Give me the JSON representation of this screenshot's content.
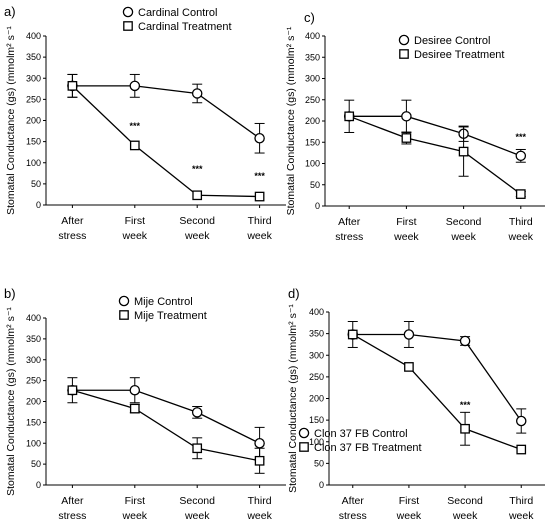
{
  "chart_data": [
    {
      "panel": "a)",
      "type": "line",
      "ylabel": "Stomatal Conductance (gs) (mmolm² s⁻¹",
      "ylim": [
        0,
        400
      ],
      "yticks": [
        0,
        50,
        100,
        150,
        200,
        250,
        300,
        350,
        400
      ],
      "categories": [
        [
          "After",
          "stress"
        ],
        [
          "First",
          "week"
        ],
        [
          "Second",
          "week"
        ],
        [
          "Third",
          "week"
        ]
      ],
      "legend_position": "top-center",
      "series": [
        {
          "name": "Cardinal Control",
          "marker": "circle",
          "values": [
            282,
            282,
            264,
            158
          ],
          "errors": [
            27,
            27,
            22,
            35
          ]
        },
        {
          "name": "Cardinal Treatment",
          "marker": "square",
          "values": [
            282,
            141,
            23,
            20
          ],
          "errors": [
            27,
            0,
            0,
            0
          ]
        }
      ],
      "annotations": [
        {
          "text": "***",
          "x": 1,
          "y": 180
        },
        {
          "text": "***",
          "x": 2,
          "y": 78
        },
        {
          "text": "***",
          "x": 3,
          "y": 62
        }
      ]
    },
    {
      "panel": "c)",
      "type": "line",
      "ylabel": "Stomatal Conductance (gs) (mmolm² s⁻¹",
      "ylim": [
        0,
        400
      ],
      "yticks": [
        0,
        50,
        100,
        150,
        200,
        250,
        300,
        350,
        400
      ],
      "categories": [
        [
          "After",
          "stress"
        ],
        [
          "First",
          "week"
        ],
        [
          "Second",
          "week"
        ],
        [
          "Third",
          "week"
        ]
      ],
      "legend_position": "top-center",
      "series": [
        {
          "name": "Desiree Control",
          "marker": "circle",
          "values": [
            211,
            211,
            170,
            118
          ],
          "errors": [
            38,
            38,
            18,
            15
          ]
        },
        {
          "name": "Desiree Treatment",
          "marker": "square",
          "values": [
            211,
            160,
            128,
            28
          ],
          "errors": [
            0,
            14,
            58,
            6
          ]
        }
      ],
      "annotations": [
        {
          "text": "***",
          "x": 3,
          "y": 155
        }
      ]
    },
    {
      "panel": "b)",
      "type": "line",
      "ylabel": "Stomatal Conductance (gs) (mmolm² s⁻¹",
      "ylim": [
        0,
        400
      ],
      "yticks": [
        0,
        50,
        100,
        150,
        200,
        250,
        300,
        350,
        400
      ],
      "categories": [
        [
          "After",
          "stress"
        ],
        [
          "First",
          "week"
        ],
        [
          "Second",
          "week"
        ],
        [
          "Third",
          "week"
        ]
      ],
      "legend_position": "top-center",
      "series": [
        {
          "name": "Mije Control",
          "marker": "circle",
          "values": [
            227,
            227,
            174,
            100
          ],
          "errors": [
            30,
            30,
            14,
            38
          ]
        },
        {
          "name": "Mije Treatment",
          "marker": "square",
          "values": [
            227,
            183,
            88,
            58
          ],
          "errors": [
            0,
            10,
            25,
            30
          ]
        }
      ],
      "annotations": []
    },
    {
      "panel": "d)",
      "type": "line",
      "ylabel": "Stomatal Conductance (gs) (mmolm² s⁻¹",
      "ylim": [
        0,
        400
      ],
      "yticks": [
        0,
        50,
        100,
        150,
        200,
        250,
        300,
        350,
        400
      ],
      "categories": [
        [
          "After",
          "stress"
        ],
        [
          "First",
          "week"
        ],
        [
          "Second",
          "week"
        ],
        [
          "Third",
          "week"
        ]
      ],
      "legend_position": "bottom-left",
      "series": [
        {
          "name": "Clon 37 FB Control",
          "marker": "circle",
          "values": [
            348,
            348,
            333,
            148
          ],
          "errors": [
            30,
            30,
            10,
            28
          ]
        },
        {
          "name": "Clon 37 FB Treatment",
          "marker": "square",
          "values": [
            348,
            273,
            130,
            82
          ],
          "errors": [
            0,
            0,
            38,
            0
          ]
        }
      ],
      "annotations": [
        {
          "text": "***",
          "x": 2,
          "y": 178
        }
      ]
    }
  ]
}
